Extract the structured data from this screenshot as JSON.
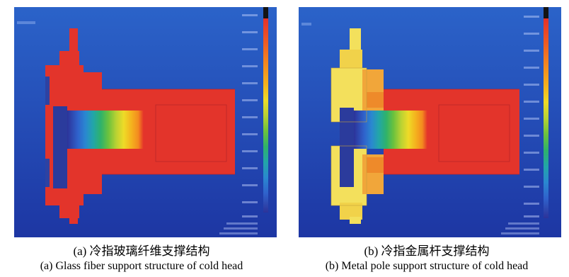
{
  "figure": {
    "panels": [
      {
        "id": "a",
        "caption_cn": "(a) 冷指玻璃纤维支撑结构",
        "caption_en": "(a) Glass fiber support structure of cold head"
      },
      {
        "id": "b",
        "caption_cn": "(b) 冷指金属杆支撑结构",
        "caption_en": "(b) Metal pole support structure of cold head"
      }
    ],
    "colorbar": {
      "colors_top_to_bottom": [
        "#141414",
        "#e4312a",
        "#ee5a24",
        "#f38b1f",
        "#f4b21e",
        "#eedb27",
        "#b8d233",
        "#6cc23d",
        "#2fb26a",
        "#22a6a8",
        "#2a88d0",
        "#2f62cc",
        "#3246b4",
        "#2c3399"
      ]
    },
    "colors": {
      "background_top": "#2a5ec6",
      "background_bottom": "#1f3aa8",
      "hot": "#e3342b",
      "cold": "#2b3b9c",
      "metal_frame": "#f3e05c"
    }
  }
}
